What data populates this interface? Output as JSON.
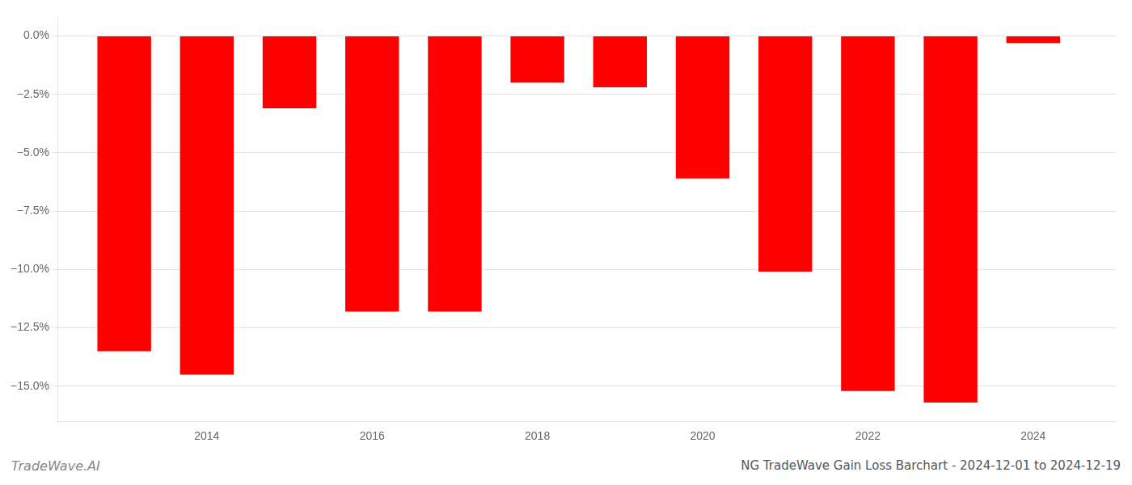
{
  "chart_data": {
    "type": "bar",
    "title": "NG TradeWave Gain Loss Barchart - 2024-12-01 to 2024-12-19",
    "annotations": [
      "TradeWave.AI"
    ],
    "x": [
      2013,
      2014,
      2015,
      2016,
      2017,
      2018,
      2019,
      2020,
      2021,
      2022,
      2023,
      2024
    ],
    "values": [
      -13.5,
      -14.5,
      -3.1,
      -11.8,
      -11.8,
      -2.0,
      -2.2,
      -6.1,
      -10.1,
      -15.2,
      -15.7,
      -0.3
    ],
    "color": "#ff0000",
    "xlim": [
      2012.2,
      2025.0
    ],
    "xticks": [
      2014,
      2016,
      2018,
      2020,
      2022,
      2024
    ],
    "ylim": [
      -16.5,
      0.8
    ],
    "yticks": [
      {
        "value": 0.0,
        "label": "0.0%"
      },
      {
        "value": -2.5,
        "label": "−2.5%"
      },
      {
        "value": -5.0,
        "label": "−5.0%"
      },
      {
        "value": -7.5,
        "label": "−7.5%"
      },
      {
        "value": -10.0,
        "label": "−10.0%"
      },
      {
        "value": -12.5,
        "label": "−12.5%"
      },
      {
        "value": -15.0,
        "label": "−15.0%"
      }
    ],
    "grid": "y"
  }
}
